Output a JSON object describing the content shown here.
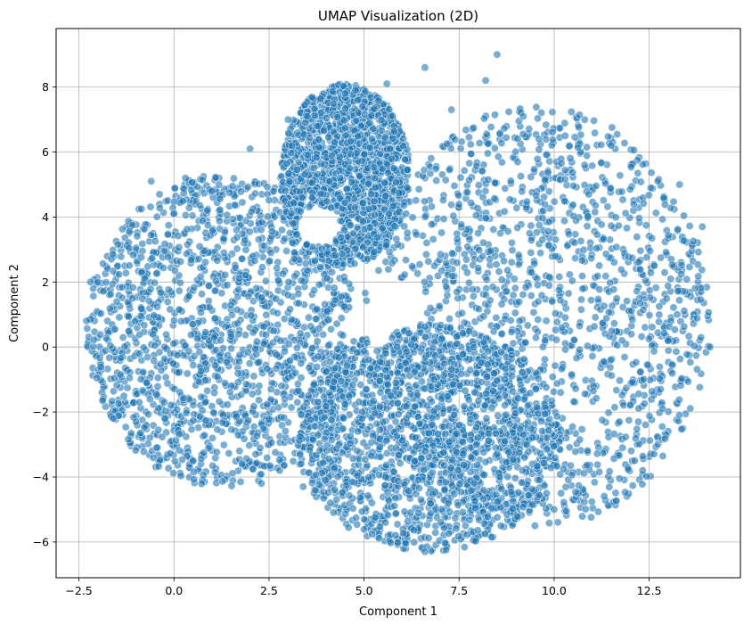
{
  "chart_data": {
    "type": "scatter",
    "title": "UMAP Visualization (2D)",
    "xlabel": "Component 1",
    "ylabel": "Component 2",
    "xlim": [
      -3.1,
      14.9
    ],
    "ylim": [
      -7.1,
      9.8
    ],
    "xticks": [
      -2.5,
      0.0,
      2.5,
      5.0,
      7.5,
      10.0,
      12.5
    ],
    "xtick_labels": [
      "−2.5",
      "0.0",
      "2.5",
      "5.0",
      "7.5",
      "10.0",
      "12.5"
    ],
    "yticks": [
      -6,
      -4,
      -2,
      0,
      2,
      4,
      6,
      8
    ],
    "ytick_labels": [
      "−6",
      "−4",
      "−2",
      "0",
      "2",
      "4",
      "6",
      "8"
    ],
    "grid": true,
    "legend": "none",
    "marker_color": "#1f77b4",
    "marker_edge_color": "#ffffff",
    "marker_alpha": 0.6,
    "points_description": "dense cloud of several thousand points spanning x from about -2.3 to 14.1 and y from about -6.3 to 9.0",
    "density_regions": [
      {
        "name": "left lobe",
        "x": [
          -2.3,
          4.8
        ],
        "y": [
          -4.3,
          5.3
        ]
      },
      {
        "name": "upper middle",
        "x": [
          2.8,
          6.2
        ],
        "y": [
          2.5,
          8.1
        ]
      },
      {
        "name": "right lobe",
        "x": [
          5.0,
          14.1
        ],
        "y": [
          -5.6,
          7.4
        ]
      },
      {
        "name": "lower middle",
        "x": [
          3.2,
          10.2
        ],
        "y": [
          -6.3,
          0.7
        ]
      }
    ],
    "sample_points": [
      {
        "x": -2.3,
        "y": 0.8
      },
      {
        "x": -2.2,
        "y": 2.0
      },
      {
        "x": -1.6,
        "y": -2.2
      },
      {
        "x": -0.6,
        "y": 5.1
      },
      {
        "x": 0.3,
        "y": 5.2
      },
      {
        "x": 2.0,
        "y": 6.1
      },
      {
        "x": 4.5,
        "y": 7.8
      },
      {
        "x": 5.6,
        "y": 8.1
      },
      {
        "x": 6.6,
        "y": 8.6
      },
      {
        "x": 8.5,
        "y": 9.0
      },
      {
        "x": 8.2,
        "y": 8.2
      },
      {
        "x": 9.6,
        "y": 6.4
      },
      {
        "x": 11.5,
        "y": 6.2
      },
      {
        "x": 13.3,
        "y": 5.0
      },
      {
        "x": 13.9,
        "y": 3.7
      },
      {
        "x": 14.1,
        "y": 0.0
      },
      {
        "x": 12.8,
        "y": -1.3
      },
      {
        "x": 11.8,
        "y": -3.1
      },
      {
        "x": 10.0,
        "y": -5.0
      },
      {
        "x": 8.6,
        "y": -5.5
      },
      {
        "x": 6.6,
        "y": -6.3
      },
      {
        "x": 5.0,
        "y": -5.3
      },
      {
        "x": 3.4,
        "y": -4.3
      },
      {
        "x": 2.3,
        "y": -4.2
      },
      {
        "x": 0.5,
        "y": -3.5
      },
      {
        "x": -1.0,
        "y": -2.3
      },
      {
        "x": 7.3,
        "y": 7.3
      },
      {
        "x": 10.8,
        "y": 5.6
      },
      {
        "x": 3.0,
        "y": 7.0
      },
      {
        "x": 1.0,
        "y": 4.8
      }
    ]
  }
}
